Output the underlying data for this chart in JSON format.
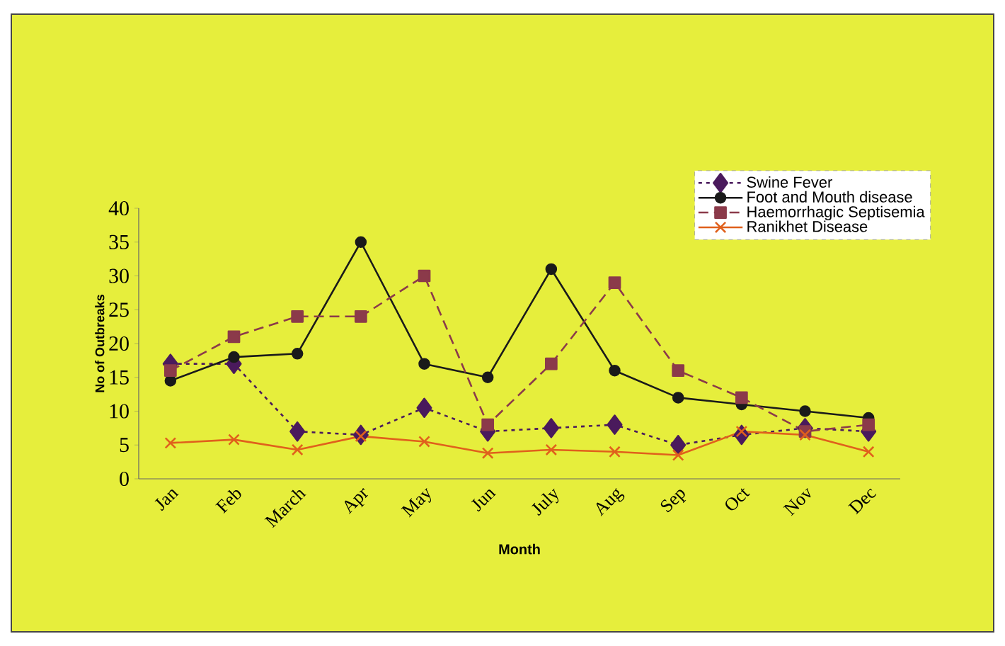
{
  "chart_data": {
    "type": "line",
    "categories": [
      "Jan",
      "Feb",
      "March",
      "Apr",
      "May",
      "Jun",
      "July",
      "Aug",
      "Sep",
      "Oct",
      "Nov",
      "Dec"
    ],
    "xlabel": "Month",
    "ylabel": "No of Outbreaks",
    "ylim": [
      0,
      40
    ],
    "yticks": [
      0,
      5,
      10,
      15,
      20,
      25,
      30,
      35,
      40
    ],
    "legend": "top right",
    "series": [
      {
        "name": "Swine Fever",
        "color": "#4a1a5c",
        "marker": "diamond",
        "line_style": "dotted",
        "values": [
          17,
          17,
          7,
          6.5,
          10.5,
          7,
          7.5,
          8,
          5,
          6.5,
          7.5,
          7
        ]
      },
      {
        "name": "Foot and Mouth disease",
        "color": "#1a1a1a",
        "marker": "circle",
        "line_style": "solid",
        "values": [
          14.5,
          18,
          18.5,
          35,
          17,
          15,
          31,
          16,
          12,
          11,
          10,
          9
        ]
      },
      {
        "name": "Haemorrhagic Septisemia",
        "color": "#8b3a4a",
        "marker": "square",
        "line_style": "dashed",
        "values": [
          16,
          21,
          24,
          24,
          30,
          8,
          17,
          29,
          16,
          12,
          7,
          8
        ]
      },
      {
        "name": "Ranikhet Disease",
        "color": "#e0601c",
        "marker": "cross",
        "line_style": "solid",
        "values": [
          5.3,
          5.8,
          4.3,
          6.3,
          5.5,
          3.8,
          4.3,
          4,
          3.5,
          7,
          6.5,
          4
        ]
      }
    ]
  }
}
